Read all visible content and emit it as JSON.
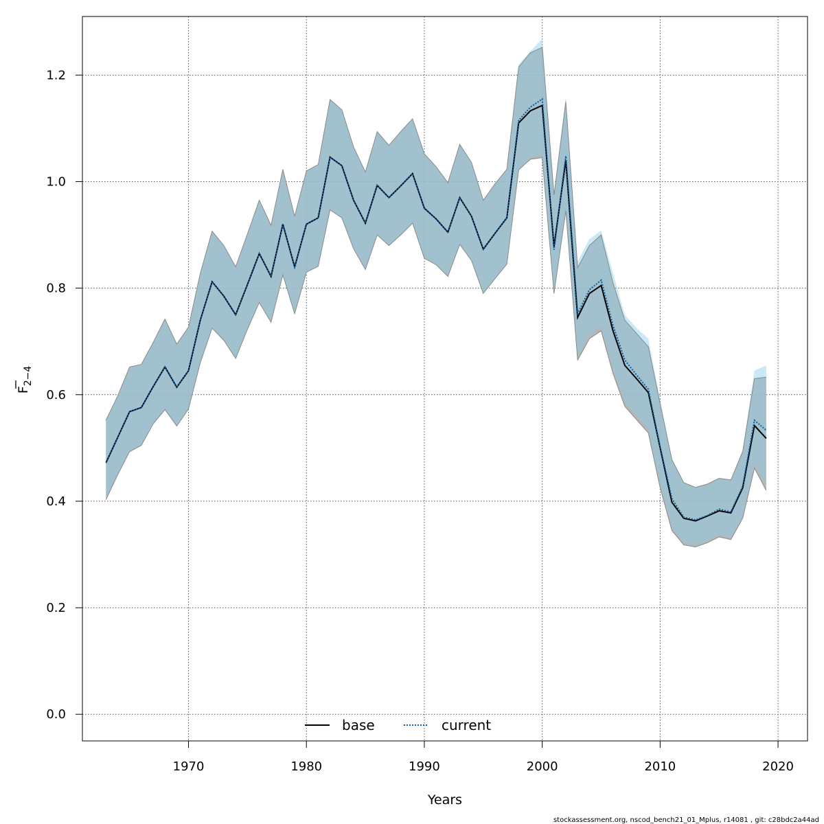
{
  "chart_data": {
    "type": "line",
    "xlabel": "Years",
    "ylabel": "F",
    "ylabel_sub": "2−4",
    "xlim": [
      1961,
      2022.5
    ],
    "ylim": [
      -0.05,
      1.31
    ],
    "xticks": [
      1970,
      1980,
      1990,
      2000,
      2010,
      2020
    ],
    "yticks": [
      0.0,
      0.2,
      0.4,
      0.6,
      0.8,
      1.0,
      1.2
    ],
    "xtick_labels": [
      "1970",
      "1980",
      "1990",
      "2000",
      "2010",
      "2020"
    ],
    "ytick_labels": [
      "0.0",
      "0.2",
      "0.4",
      "0.6",
      "0.8",
      "1.0",
      "1.2"
    ],
    "grid": true,
    "legend_position": "bottom-center",
    "x": [
      1963,
      1964,
      1965,
      1966,
      1967,
      1968,
      1969,
      1970,
      1971,
      1972,
      1973,
      1974,
      1975,
      1976,
      1977,
      1978,
      1979,
      1980,
      1981,
      1982,
      1983,
      1984,
      1985,
      1986,
      1987,
      1988,
      1989,
      1990,
      1991,
      1992,
      1993,
      1994,
      1995,
      1996,
      1997,
      1998,
      1999,
      2000,
      2001,
      2002,
      2003,
      2004,
      2005,
      2006,
      2007,
      2008,
      2009,
      2010,
      2011,
      2012,
      2013,
      2014,
      2015,
      2016,
      2017,
      2018,
      2019
    ],
    "series": [
      {
        "name": "base",
        "color": "#000000",
        "band_color": "#a9a9a9",
        "line_style": "solid",
        "values": [
          0.472,
          0.52,
          0.568,
          0.576,
          0.615,
          0.652,
          0.614,
          0.645,
          0.74,
          0.812,
          0.785,
          0.75,
          0.807,
          0.865,
          0.822,
          0.92,
          0.84,
          0.92,
          0.932,
          1.046,
          1.03,
          0.965,
          0.922,
          0.993,
          0.97,
          0.992,
          1.015,
          0.95,
          0.93,
          0.905,
          0.97,
          0.935,
          0.873,
          0.903,
          0.932,
          1.11,
          1.133,
          1.143,
          0.878,
          1.04,
          0.745,
          0.79,
          0.805,
          0.72,
          0.655,
          0.63,
          0.604,
          0.5,
          0.398,
          0.368,
          0.363,
          0.372,
          0.382,
          0.378,
          0.425,
          0.542,
          0.518
        ],
        "lower": [
          0.403,
          0.45,
          0.493,
          0.505,
          0.545,
          0.572,
          0.541,
          0.573,
          0.66,
          0.725,
          0.702,
          0.668,
          0.723,
          0.773,
          0.736,
          0.825,
          0.752,
          0.83,
          0.841,
          0.947,
          0.932,
          0.874,
          0.835,
          0.9,
          0.88,
          0.9,
          0.922,
          0.856,
          0.844,
          0.822,
          0.882,
          0.852,
          0.79,
          0.818,
          0.845,
          1.022,
          1.042,
          1.045,
          0.79,
          0.945,
          0.665,
          0.705,
          0.72,
          0.64,
          0.578,
          0.553,
          0.528,
          0.425,
          0.345,
          0.318,
          0.314,
          0.322,
          0.333,
          0.328,
          0.368,
          0.462,
          0.42
        ],
        "upper": [
          0.552,
          0.598,
          0.652,
          0.657,
          0.698,
          0.742,
          0.695,
          0.727,
          0.828,
          0.907,
          0.88,
          0.84,
          0.902,
          0.965,
          0.918,
          1.023,
          0.935,
          1.02,
          1.032,
          1.154,
          1.135,
          1.065,
          1.018,
          1.094,
          1.068,
          1.094,
          1.118,
          1.052,
          1.028,
          0.998,
          1.07,
          1.036,
          0.965,
          0.996,
          1.023,
          1.215,
          1.242,
          1.252,
          0.975,
          1.15,
          0.838,
          0.88,
          0.9,
          0.81,
          0.74,
          0.715,
          0.69,
          0.583,
          0.478,
          0.435,
          0.426,
          0.432,
          0.443,
          0.44,
          0.493,
          0.63,
          0.633
        ]
      },
      {
        "name": "current",
        "color": "#0b5a9b",
        "band_color": "#87ceeb",
        "line_style": "dotted",
        "values": [
          0.472,
          0.52,
          0.568,
          0.576,
          0.615,
          0.652,
          0.614,
          0.645,
          0.74,
          0.812,
          0.785,
          0.75,
          0.807,
          0.865,
          0.822,
          0.92,
          0.84,
          0.92,
          0.932,
          1.046,
          1.03,
          0.965,
          0.922,
          0.993,
          0.97,
          0.992,
          1.015,
          0.95,
          0.93,
          0.905,
          0.97,
          0.935,
          0.873,
          0.903,
          0.932,
          1.115,
          1.14,
          1.155,
          0.872,
          1.048,
          0.752,
          0.797,
          0.815,
          0.73,
          0.665,
          0.637,
          0.61,
          0.502,
          0.405,
          0.37,
          0.365,
          0.373,
          0.385,
          0.38,
          0.428,
          0.552,
          0.533
        ],
        "lower": [
          0.403,
          0.45,
          0.493,
          0.505,
          0.545,
          0.572,
          0.541,
          0.573,
          0.66,
          0.725,
          0.702,
          0.668,
          0.723,
          0.773,
          0.736,
          0.825,
          0.752,
          0.83,
          0.841,
          0.947,
          0.932,
          0.874,
          0.835,
          0.9,
          0.88,
          0.9,
          0.922,
          0.856,
          0.844,
          0.822,
          0.882,
          0.852,
          0.79,
          0.818,
          0.845,
          1.022,
          1.045,
          1.05,
          0.79,
          0.95,
          0.67,
          0.712,
          0.728,
          0.648,
          0.585,
          0.56,
          0.535,
          0.43,
          0.35,
          0.322,
          0.318,
          0.325,
          0.337,
          0.332,
          0.37,
          0.47,
          0.43
        ],
        "upper": [
          0.552,
          0.598,
          0.652,
          0.657,
          0.698,
          0.742,
          0.695,
          0.727,
          0.828,
          0.907,
          0.88,
          0.84,
          0.902,
          0.965,
          0.918,
          1.023,
          0.935,
          1.02,
          1.032,
          1.154,
          1.135,
          1.065,
          1.018,
          1.094,
          1.068,
          1.094,
          1.118,
          1.052,
          1.028,
          0.998,
          1.07,
          1.036,
          0.965,
          0.996,
          1.023,
          1.22,
          1.245,
          1.268,
          0.98,
          1.16,
          0.85,
          0.892,
          0.908,
          0.828,
          0.75,
          0.725,
          0.705,
          0.59,
          0.478,
          0.435,
          0.427,
          0.433,
          0.444,
          0.44,
          0.497,
          0.645,
          0.655
        ]
      }
    ]
  },
  "footer": {
    "note": "stockassessment.org, nscod_bench21_01_Mplus, r14081 , git: c28bdc2a44ad"
  }
}
